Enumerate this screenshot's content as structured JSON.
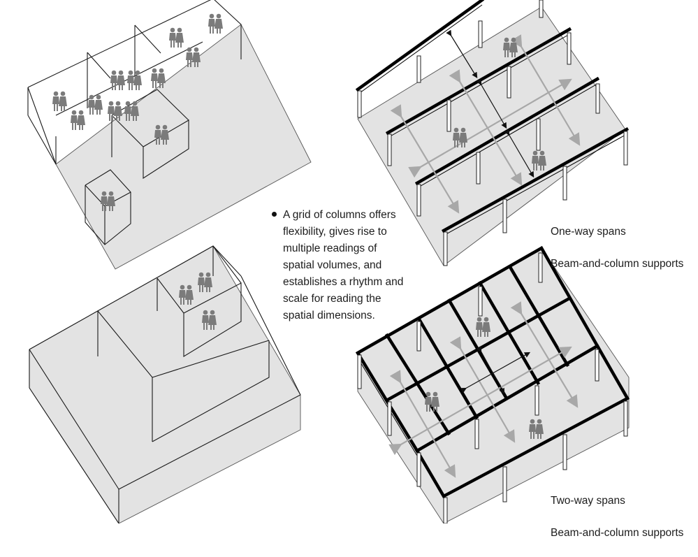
{
  "bullet_text": "A grid of columns offers flexibility, gives rise to multiple readings of spatial volumes, and establishes a rhythm and scale for reading the spatial dimensions.",
  "captions": {
    "one_way_title": "One-way spans",
    "one_way_subtitle": "Beam-and-column supports",
    "two_way_title": "Two-way spans",
    "two_way_subtitle": "Beam-and-column supports"
  },
  "colors": {
    "floor": "#e3e3e3",
    "people": "#7b7b7b",
    "span_arrows": "#a8a8a8",
    "beams": "#000000"
  },
  "icons": [
    "person-pair-icon",
    "span-arrow-icon",
    "dimension-arrow-icon"
  ]
}
